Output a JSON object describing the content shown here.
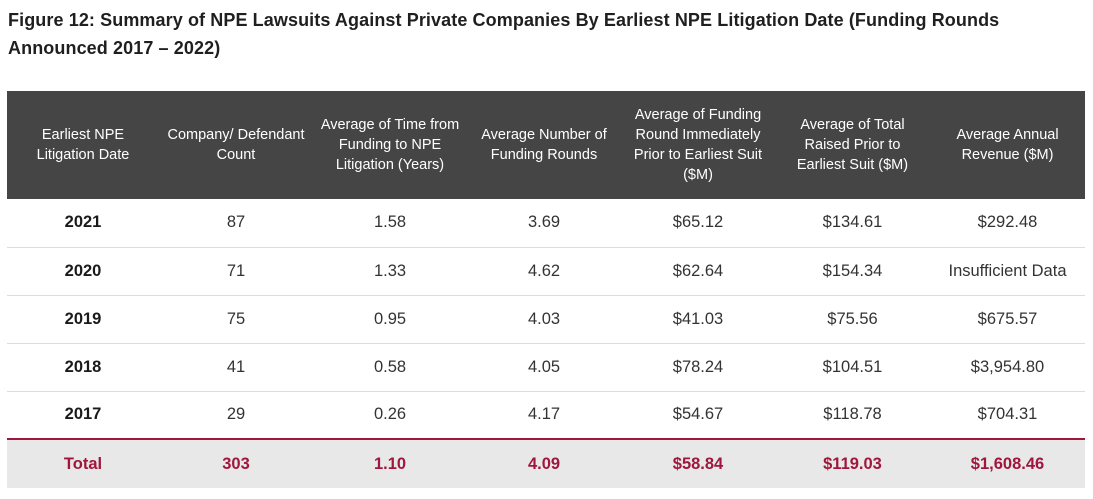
{
  "figure": {
    "title": "Figure 12: Summary of NPE Lawsuits Against Private Companies By Earliest NPE Litigation Date (Funding Rounds Announced 2017 – 2022)"
  },
  "table": {
    "headers": [
      "Earliest NPE Litigation Date",
      "Company/ Defendant Count",
      "Average of Time from Funding to NPE Litigation (Years)",
      "Average Number of Funding Rounds",
      "Average of Funding Round Immediately Prior to Earliest Suit ($M)",
      "Average of Total Raised Prior to Earliest Suit ($M)",
      "Average Annual Revenue ($M)"
    ],
    "rows": [
      [
        "2021",
        "87",
        "1.58",
        "3.69",
        "$65.12",
        "$134.61",
        "$292.48"
      ],
      [
        "2020",
        "71",
        "1.33",
        "4.62",
        "$62.64",
        "$154.34",
        "Insufficient Data"
      ],
      [
        "2019",
        "75",
        "0.95",
        "4.03",
        "$41.03",
        "$75.56",
        "$675.57"
      ],
      [
        "2018",
        "41",
        "0.58",
        "4.05",
        "$78.24",
        "$104.51",
        "$3,954.80"
      ],
      [
        "2017",
        "29",
        "0.26",
        "4.17",
        "$54.67",
        "$118.78",
        "$704.31"
      ]
    ],
    "total": [
      "Total",
      "303",
      "1.10",
      "4.09",
      "$58.84",
      "$119.03",
      "$1,608.46"
    ]
  },
  "colors": {
    "header_bg": "#454545",
    "accent": "#a0163c",
    "total_bg": "#e8e8e8"
  }
}
